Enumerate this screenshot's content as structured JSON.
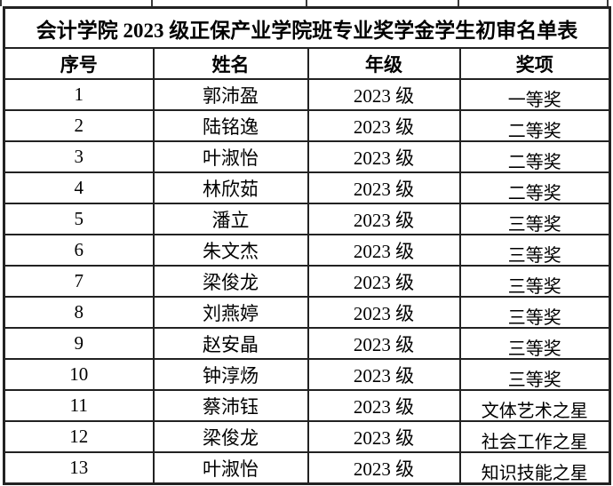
{
  "title": "会计学院 2023 级正保产业学院班专业奖学金学生初审名单表",
  "columns": [
    "序号",
    "姓名",
    "年级",
    "奖项"
  ],
  "rows": [
    [
      "1",
      "郭沛盈",
      "2023 级",
      "一等奖"
    ],
    [
      "2",
      "陆铭逸",
      "2023 级",
      "二等奖"
    ],
    [
      "3",
      "叶淑怡",
      "2023 级",
      "二等奖"
    ],
    [
      "4",
      "林欣茹",
      "2023 级",
      "二等奖"
    ],
    [
      "5",
      "潘立",
      "2023 级",
      "三等奖"
    ],
    [
      "6",
      "朱文杰",
      "2023 级",
      "三等奖"
    ],
    [
      "7",
      "梁俊龙",
      "2023 级",
      "三等奖"
    ],
    [
      "8",
      "刘燕婷",
      "2023 级",
      "三等奖"
    ],
    [
      "9",
      "赵安晶",
      "2023 级",
      "三等奖"
    ],
    [
      "10",
      "钟淳炀",
      "2023 级",
      "三等奖"
    ],
    [
      "11",
      "蔡沛钰",
      "2023 级",
      "文体艺术之星"
    ],
    [
      "12",
      "梁俊龙",
      "2023 级",
      "社会工作之星"
    ],
    [
      "13",
      "叶淑怡",
      "2023 级",
      "知识技能之星"
    ]
  ],
  "colors": {
    "border": "#222222",
    "text": "#000000",
    "background": "#ffffff"
  }
}
